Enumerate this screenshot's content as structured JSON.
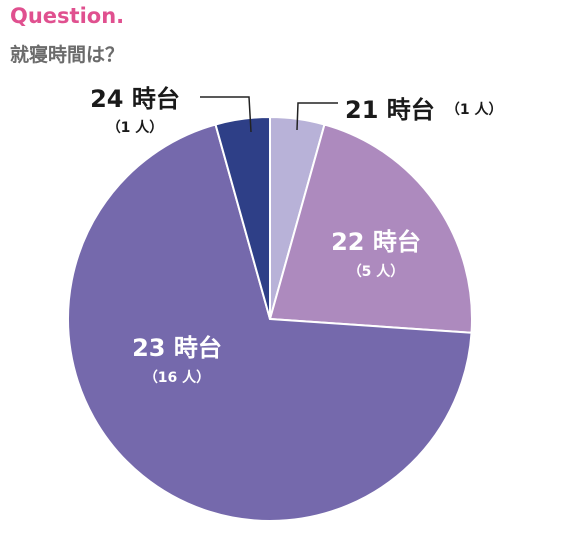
{
  "header": {
    "label": "Question.",
    "question": "就寝時間は？"
  },
  "chart_data": {
    "type": "pie",
    "title": "",
    "categories": [
      "21時台",
      "22時台",
      "23時台",
      "24時台"
    ],
    "labels": [
      "21 時台",
      "22 時台",
      "23 時台",
      "24 時台"
    ],
    "counts": [
      "（1 人）",
      "（5 人）",
      "（16 人）",
      "（1 人）"
    ],
    "values": [
      1,
      5,
      16,
      1
    ],
    "colors": [
      "#b8b2d8",
      "#ad8abe",
      "#7569ac",
      "#2e3f87"
    ],
    "start_angle_deg": 0,
    "direction": "clockwise"
  }
}
